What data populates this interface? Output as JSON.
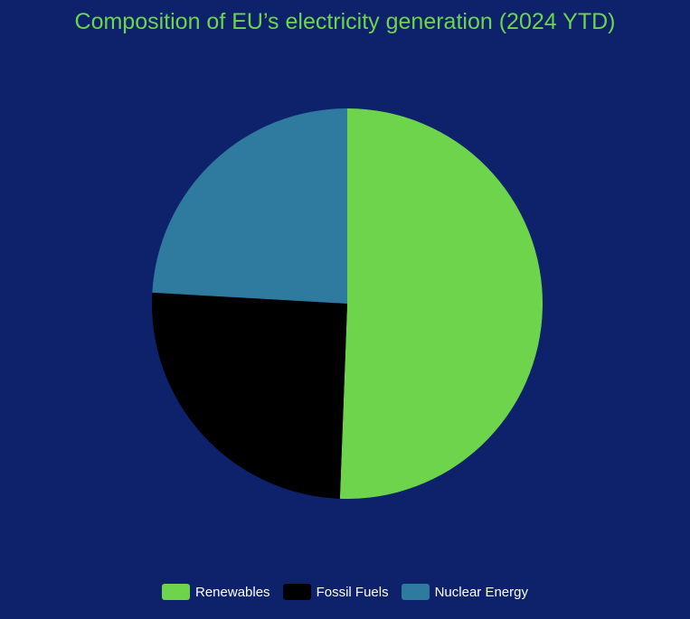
{
  "chart_data": {
    "type": "pie",
    "title": "Composition of EU’s electricity generation (2024 YTD)",
    "categories": [
      "Renewables",
      "Fossil Fuels",
      "Nuclear Energy"
    ],
    "values": [
      50.6,
      25.3,
      24.1
    ],
    "colors": [
      "#6ed44c",
      "#000000",
      "#2f7a9f"
    ],
    "legend_position": "bottom",
    "start_angle_deg": 0,
    "direction": "clockwise"
  }
}
